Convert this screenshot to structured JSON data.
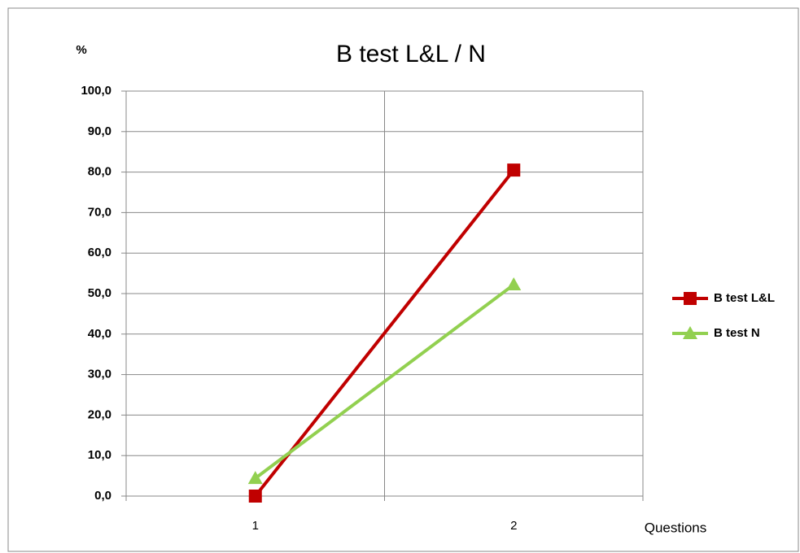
{
  "chart_data": {
    "type": "line",
    "title": "B test L&L / N",
    "y_label": "%",
    "x_label": "Questions",
    "categories": [
      "1",
      "2"
    ],
    "series": [
      {
        "name": "B test L&L",
        "color": "#c00000",
        "marker": "square",
        "values": [
          0.0,
          80.5
        ]
      },
      {
        "name": "B test N",
        "color": "#92d050",
        "marker": "triangle",
        "values": [
          4.4,
          52.2
        ]
      }
    ],
    "ylim": [
      0,
      100
    ],
    "yticks": [
      {
        "value": 0,
        "label": "0,0"
      },
      {
        "value": 10,
        "label": "10,0"
      },
      {
        "value": 20,
        "label": "20,0"
      },
      {
        "value": 30,
        "label": "30,0"
      },
      {
        "value": 40,
        "label": "40,0"
      },
      {
        "value": 50,
        "label": "50,0"
      },
      {
        "value": 60,
        "label": "60,0"
      },
      {
        "value": 70,
        "label": "70,0"
      },
      {
        "value": 80,
        "label": "80,0"
      },
      {
        "value": 90,
        "label": "90,0"
      },
      {
        "value": 100,
        "label": "100,0"
      }
    ],
    "grid": true,
    "legend": "right"
  }
}
